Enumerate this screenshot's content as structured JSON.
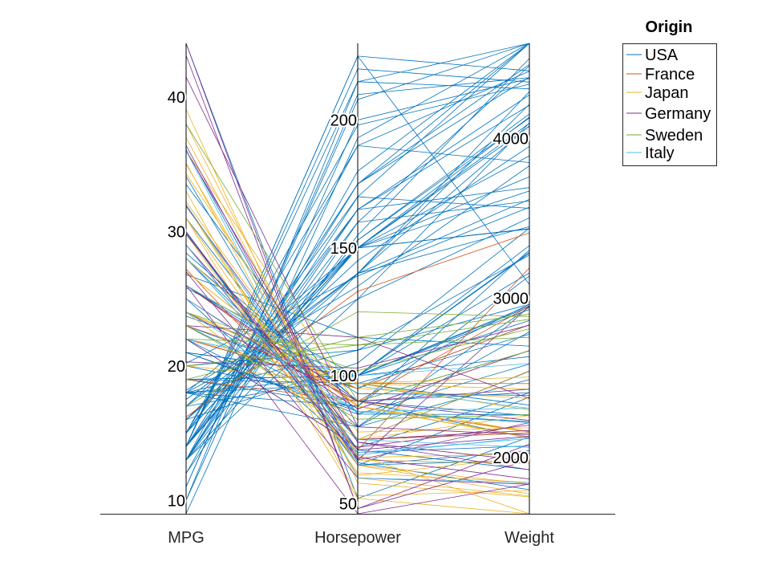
{
  "chart_data": {
    "type": "parallel_coordinates",
    "title": "",
    "grid": false,
    "legend": {
      "title": "Origin",
      "placement": "top-right"
    },
    "axes": [
      {
        "name": "MPG",
        "range": [
          9,
          44
        ],
        "ticks": [
          10,
          20,
          30,
          40
        ]
      },
      {
        "name": "Horsepower",
        "range": [
          46,
          230
        ],
        "ticks": [
          50,
          100,
          150,
          200
        ]
      },
      {
        "name": "Weight",
        "range": [
          1649,
          4597
        ],
        "ticks": [
          2000,
          3000,
          4000
        ]
      }
    ],
    "series": [
      {
        "name": "USA",
        "color": "#0072BD",
        "rows": [
          [
            18,
            130,
            3504
          ],
          [
            15,
            165,
            3693
          ],
          [
            18,
            150,
            3436
          ],
          [
            16,
            150,
            3433
          ],
          [
            17,
            140,
            3449
          ],
          [
            15,
            198,
            4341
          ],
          [
            14,
            220,
            4354
          ],
          [
            14,
            215,
            4312
          ],
          [
            14,
            225,
            4425
          ],
          [
            15,
            190,
            3850
          ],
          [
            15,
            170,
            3563
          ],
          [
            14,
            160,
            3609
          ],
          [
            15,
            150,
            3761
          ],
          [
            14,
            225,
            3086
          ],
          [
            22,
            95,
            2833
          ],
          [
            18,
            97,
            2774
          ],
          [
            21,
            85,
            2587
          ],
          [
            10,
            215,
            4615
          ],
          [
            10,
            200,
            4376
          ],
          [
            11,
            210,
            4382
          ],
          [
            9,
            193,
            4732
          ],
          [
            28,
            90,
            2264
          ],
          [
            19,
            100,
            2634
          ],
          [
            16,
            105,
            3439
          ],
          [
            17,
            100,
            3329
          ],
          [
            19,
            88,
            3302
          ],
          [
            18,
            100,
            3288
          ],
          [
            14,
            165,
            4209
          ],
          [
            14,
            175,
            4464
          ],
          [
            14,
            153,
            4154
          ],
          [
            14,
            150,
            4096
          ],
          [
            12,
            180,
            4955
          ],
          [
            13,
            170,
            4746
          ],
          [
            13,
            175,
            5140
          ],
          [
            18,
            110,
            2962
          ],
          [
            22,
            72,
            2408
          ],
          [
            19,
            100,
            3282
          ],
          [
            18,
            88,
            3139
          ],
          [
            23,
            86,
            2220
          ],
          [
            26,
            90,
            2123
          ],
          [
            25,
            70,
            2074
          ],
          [
            20,
            90,
            2408
          ],
          [
            21,
            86,
            2226
          ],
          [
            13,
            165,
            4274
          ],
          [
            14,
            175,
            4385
          ],
          [
            15,
            150,
            4135
          ],
          [
            14,
            153,
            4129
          ],
          [
            17,
            150,
            3672
          ],
          [
            11,
            208,
            4633
          ],
          [
            13,
            155,
            4502
          ],
          [
            12,
            160,
            4456
          ],
          [
            13,
            190,
            4422
          ],
          [
            19,
            97,
            2330
          ],
          [
            15,
            150,
            3892
          ],
          [
            13,
            130,
            4098
          ],
          [
            13,
            140,
            4294
          ],
          [
            14,
            150,
            4077
          ],
          [
            18,
            80,
            2789
          ],
          [
            22,
            80,
            2945
          ],
          [
            21,
            100,
            3158
          ],
          [
            26,
            93,
            2391
          ],
          [
            22,
            100,
            2945
          ],
          [
            28,
            75,
            2155
          ],
          [
            23,
            95,
            2962
          ],
          [
            28,
            80,
            2490
          ],
          [
            30,
            65,
            1985
          ],
          [
            20,
            110,
            3270
          ],
          [
            21,
            100,
            2953
          ],
          [
            16,
            140,
            3619
          ],
          [
            16,
            145,
            3951
          ],
          [
            17.5,
            140,
            4080
          ],
          [
            17.5,
            140,
            4215
          ],
          [
            18.2,
            135,
            3830
          ],
          [
            20.2,
            139,
            3570
          ],
          [
            26.8,
            115,
            2700
          ],
          [
            31,
            75,
            2542
          ],
          [
            33.5,
            85,
            2270
          ],
          [
            23.7,
            100,
            2930
          ],
          [
            29.9,
            65,
            2380
          ],
          [
            34.1,
            65,
            2045
          ],
          [
            36.1,
            66,
            1800
          ],
          [
            28.4,
            90,
            2670
          ],
          [
            31.9,
            71,
            1925
          ],
          [
            25.8,
            100,
            2860
          ],
          [
            44,
            52,
            2130
          ]
        ]
      },
      {
        "name": "France",
        "color": "#D95319",
        "rows": [
          [
            25,
            87,
            2672
          ],
          [
            22,
            95,
            2833
          ],
          [
            23,
            97,
            2465
          ],
          [
            27.2,
            71,
            3190
          ],
          [
            16.2,
            133,
            3410
          ],
          [
            26,
            88,
            2164
          ],
          [
            19,
            90,
            2950
          ],
          [
            28,
            75,
            2155
          ]
        ]
      },
      {
        "name": "Japan",
        "color": "#EDB120",
        "rows": [
          [
            24,
            95,
            2372
          ],
          [
            27,
            88,
            2130
          ],
          [
            27,
            88,
            2130
          ],
          [
            31,
            65,
            1773
          ],
          [
            35,
            69,
            1613
          ],
          [
            24,
            97,
            2430
          ],
          [
            32,
            61,
            2003
          ],
          [
            31,
            52,
            1649
          ],
          [
            32,
            65,
            1836
          ],
          [
            29,
            75,
            2171
          ],
          [
            24,
            90,
            2160
          ],
          [
            33,
            53,
            1795
          ],
          [
            38,
            67,
            1965
          ],
          [
            37,
            68,
            2025
          ],
          [
            36,
            88,
            2125
          ],
          [
            32.2,
            75,
            2265
          ],
          [
            34.3,
            78,
            2188
          ],
          [
            29.8,
            62,
            1845
          ],
          [
            39.1,
            58,
            1755
          ],
          [
            35.1,
            60,
            1760
          ],
          [
            22,
            97,
            2300
          ],
          [
            20,
            97,
            2506
          ],
          [
            26,
            97,
            2300
          ],
          [
            24,
            75,
            2545
          ],
          [
            28,
            88,
            2160
          ]
        ]
      },
      {
        "name": "Germany",
        "color": "#7E2F8E",
        "rows": [
          [
            26,
            46,
            1835
          ],
          [
            25,
            87,
            2672
          ],
          [
            24,
            90,
            2430
          ],
          [
            23,
            115,
            2372
          ],
          [
            22,
            72,
            2205
          ],
          [
            26,
            90,
            2234
          ],
          [
            29,
            75,
            2171
          ],
          [
            41.5,
            80,
            2144
          ],
          [
            43.1,
            48,
            1985
          ],
          [
            44.3,
            48,
            2085
          ],
          [
            29.8,
            71,
            2135
          ],
          [
            31.9,
            74,
            1925
          ],
          [
            30,
            67,
            2220
          ],
          [
            20.3,
            103,
            2830
          ],
          [
            36,
            74,
            1980
          ],
          [
            29,
            68,
            1867
          ],
          [
            27,
            60,
            1834
          ],
          [
            36.4,
            67,
            2950
          ]
        ]
      },
      {
        "name": "Sweden",
        "color": "#77AC30",
        "rows": [
          [
            20,
            112,
            2868
          ],
          [
            24,
            102,
            2808
          ],
          [
            17,
            125,
            2885
          ],
          [
            23,
            83,
            2270
          ],
          [
            19,
            115,
            2900
          ],
          [
            38,
            90,
            2670
          ],
          [
            22,
            112,
            2755
          ]
        ]
      },
      {
        "name": "Italy",
        "color": "#4DBEEE",
        "rows": [
          [
            29,
            69,
            2130
          ],
          [
            25,
            86,
            2220
          ],
          [
            28,
            75,
            2065
          ],
          [
            32,
            70,
            2120
          ],
          [
            36,
            60,
            1845
          ],
          [
            24,
            86,
            2310
          ],
          [
            22,
            100,
            2590
          ],
          [
            26,
            96,
            2310
          ]
        ]
      }
    ]
  }
}
